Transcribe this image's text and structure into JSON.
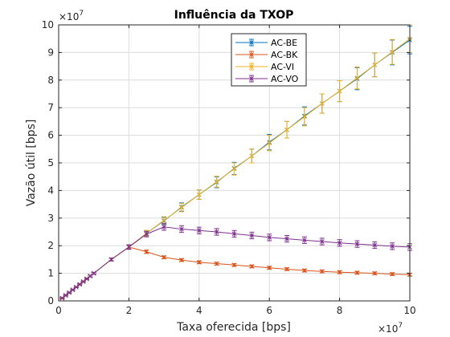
{
  "chart_data": {
    "type": "line",
    "title": "Influência da TXOP",
    "xlabel": "Taxa oferecida [bps]",
    "ylabel": "Vazão útil [bps]",
    "x_multiplier": "×10",
    "x_exponent": "7",
    "y_multiplier": "×10",
    "y_exponent": "7",
    "xlim": [
      0,
      10
    ],
    "ylim": [
      0,
      10
    ],
    "xticks": [
      "0",
      "2",
      "4",
      "6",
      "8",
      "10"
    ],
    "yticks": [
      "0",
      "1",
      "2",
      "3",
      "4",
      "5",
      "6",
      "7",
      "8",
      "9",
      "10"
    ],
    "grid": true,
    "legend_position": "top-right",
    "x": [
      0.1,
      0.2,
      0.3,
      0.4,
      0.5,
      0.6,
      0.7,
      0.8,
      0.9,
      1.0,
      1.5,
      2.0,
      2.5,
      3.0,
      3.5,
      4.0,
      4.5,
      5.0,
      5.5,
      6.0,
      6.5,
      7.0,
      7.5,
      8.0,
      8.5,
      9.0,
      9.5,
      10.0
    ],
    "series": [
      {
        "name": "AC-BE",
        "color": "#0072BD",
        "values": [
          0.1,
          0.2,
          0.3,
          0.4,
          0.5,
          0.6,
          0.7,
          0.8,
          0.9,
          1.0,
          1.5,
          1.95,
          2.45,
          2.9,
          3.4,
          3.85,
          4.3,
          4.8,
          5.25,
          5.75,
          6.2,
          6.7,
          7.15,
          7.6,
          8.05,
          8.55,
          9.0,
          9.45
        ],
        "errors": [
          0.02,
          0.02,
          0.02,
          0.02,
          0.02,
          0.02,
          0.02,
          0.02,
          0.03,
          0.03,
          0.05,
          0.08,
          0.1,
          0.13,
          0.15,
          0.17,
          0.2,
          0.22,
          0.25,
          0.28,
          0.3,
          0.33,
          0.35,
          0.38,
          0.4,
          0.43,
          0.45,
          0.5
        ]
      },
      {
        "name": "AC-BK",
        "color": "#D95319",
        "values": [
          0.1,
          0.2,
          0.3,
          0.4,
          0.5,
          0.6,
          0.7,
          0.8,
          0.9,
          1.0,
          1.5,
          1.95,
          1.78,
          1.58,
          1.48,
          1.4,
          1.35,
          1.3,
          1.25,
          1.2,
          1.15,
          1.1,
          1.07,
          1.04,
          1.02,
          1.0,
          0.97,
          0.95
        ],
        "errors": [
          0.02,
          0.02,
          0.02,
          0.02,
          0.02,
          0.02,
          0.02,
          0.02,
          0.03,
          0.03,
          0.05,
          0.07,
          0.06,
          0.05,
          0.05,
          0.05,
          0.05,
          0.05,
          0.05,
          0.05,
          0.05,
          0.05,
          0.05,
          0.05,
          0.05,
          0.05,
          0.05,
          0.05
        ]
      },
      {
        "name": "AC-VI",
        "color": "#EDB120",
        "values": [
          0.1,
          0.2,
          0.3,
          0.4,
          0.5,
          0.6,
          0.7,
          0.8,
          0.9,
          1.0,
          1.5,
          1.95,
          2.45,
          2.92,
          3.38,
          3.85,
          4.32,
          4.78,
          5.25,
          5.72,
          6.2,
          6.67,
          7.15,
          7.6,
          8.08,
          8.55,
          9.02,
          9.5
        ],
        "errors": [
          0.02,
          0.02,
          0.02,
          0.02,
          0.02,
          0.02,
          0.02,
          0.02,
          0.03,
          0.03,
          0.05,
          0.08,
          0.1,
          0.13,
          0.15,
          0.17,
          0.2,
          0.22,
          0.25,
          0.28,
          0.3,
          0.33,
          0.35,
          0.38,
          0.4,
          0.43,
          0.45,
          0.5
        ]
      },
      {
        "name": "AC-VO",
        "color": "#7E2F8E",
        "values": [
          0.1,
          0.2,
          0.3,
          0.4,
          0.5,
          0.6,
          0.7,
          0.8,
          0.9,
          1.0,
          1.5,
          1.95,
          2.42,
          2.68,
          2.6,
          2.55,
          2.5,
          2.43,
          2.37,
          2.3,
          2.25,
          2.2,
          2.15,
          2.1,
          2.06,
          2.02,
          1.98,
          1.95
        ],
        "errors": [
          0.02,
          0.02,
          0.02,
          0.02,
          0.02,
          0.02,
          0.02,
          0.02,
          0.03,
          0.03,
          0.05,
          0.08,
          0.1,
          0.12,
          0.12,
          0.12,
          0.12,
          0.12,
          0.12,
          0.12,
          0.12,
          0.12,
          0.12,
          0.12,
          0.12,
          0.12,
          0.12,
          0.12
        ]
      }
    ]
  }
}
